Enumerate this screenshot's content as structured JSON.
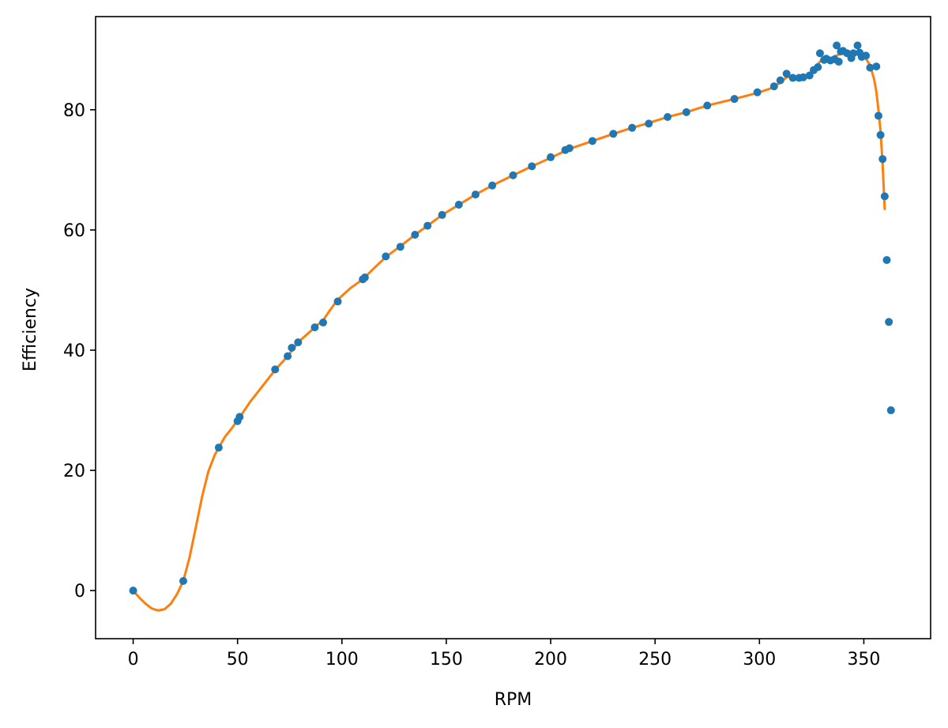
{
  "chart_data": {
    "type": "scatter",
    "title": "",
    "xlabel": "RPM",
    "ylabel": "Efficiency",
    "xlim": [
      -18,
      382
    ],
    "ylim": [
      -8,
      95.5
    ],
    "xticks": [
      0,
      50,
      100,
      150,
      200,
      250,
      300,
      350
    ],
    "yticks": [
      0,
      20,
      40,
      60,
      80
    ],
    "grid": false,
    "legend": "none",
    "series": [
      {
        "kind": "scatter",
        "color": "#1f77b4",
        "points": [
          [
            0,
            0
          ],
          [
            24,
            1.6
          ],
          [
            41,
            23.8
          ],
          [
            50,
            28.2
          ],
          [
            51,
            28.9
          ],
          [
            68,
            36.8
          ],
          [
            74,
            39
          ],
          [
            76,
            40.4
          ],
          [
            79,
            41.3
          ],
          [
            87,
            43.8
          ],
          [
            91,
            44.6
          ],
          [
            98,
            48.1
          ],
          [
            110,
            51.8
          ],
          [
            111,
            52.1
          ],
          [
            121,
            55.6
          ],
          [
            128,
            57.2
          ],
          [
            135,
            59.2
          ],
          [
            141,
            60.7
          ],
          [
            148,
            62.5
          ],
          [
            156,
            64.2
          ],
          [
            164,
            65.9
          ],
          [
            172,
            67.4
          ],
          [
            182,
            69.1
          ],
          [
            191,
            70.6
          ],
          [
            200,
            72.1
          ],
          [
            207,
            73.3
          ],
          [
            209,
            73.6
          ],
          [
            220,
            74.8
          ],
          [
            230,
            76.0
          ],
          [
            239,
            77.0
          ],
          [
            247,
            77.7
          ],
          [
            256,
            78.8
          ],
          [
            265,
            79.6
          ],
          [
            275,
            80.7
          ],
          [
            288,
            81.8
          ],
          [
            299,
            82.9
          ],
          [
            307,
            83.9
          ],
          [
            310,
            84.9
          ],
          [
            313,
            86.0
          ],
          [
            316,
            85.3
          ],
          [
            319,
            85.3
          ],
          [
            321,
            85.4
          ],
          [
            324,
            85.7
          ],
          [
            326,
            86.6
          ],
          [
            328,
            87.1
          ],
          [
            329,
            89.4
          ],
          [
            331,
            88.3
          ],
          [
            332,
            88.5
          ],
          [
            334,
            88.2
          ],
          [
            336,
            88.4
          ],
          [
            337,
            90.7
          ],
          [
            338,
            88.0
          ],
          [
            339,
            89.7
          ],
          [
            340,
            89.8
          ],
          [
            342,
            89.4
          ],
          [
            344,
            88.6
          ],
          [
            345,
            89.4
          ],
          [
            347,
            90.7
          ],
          [
            348,
            89.5
          ],
          [
            349,
            88.8
          ],
          [
            351,
            89.0
          ],
          [
            353,
            87.0
          ],
          [
            356,
            87.2
          ],
          [
            357,
            79.0
          ],
          [
            358,
            75.8
          ],
          [
            359,
            71.8
          ],
          [
            360,
            65.6
          ],
          [
            361,
            55.0
          ],
          [
            362,
            44.7
          ],
          [
            363,
            30.0
          ]
        ]
      },
      {
        "kind": "line",
        "color": "#ff7f0e",
        "points": [
          [
            0,
            0
          ],
          [
            3,
            -1.2
          ],
          [
            6,
            -2.2
          ],
          [
            9,
            -3.0
          ],
          [
            12,
            -3.3
          ],
          [
            15,
            -3.1
          ],
          [
            18,
            -2.2
          ],
          [
            21,
            -0.6
          ],
          [
            24,
            1.6
          ],
          [
            27,
            5.5
          ],
          [
            30,
            10.5
          ],
          [
            33,
            15.6
          ],
          [
            36,
            19.8
          ],
          [
            39,
            22.5
          ],
          [
            41,
            23.8
          ],
          [
            44,
            25.6
          ],
          [
            47,
            26.9
          ],
          [
            51,
            28.8
          ],
          [
            56,
            31.4
          ],
          [
            61,
            33.6
          ],
          [
            68,
            36.7
          ],
          [
            74,
            39.0
          ],
          [
            79,
            41.3
          ],
          [
            87,
            43.8
          ],
          [
            91,
            45.0
          ],
          [
            95,
            47.0
          ],
          [
            98,
            48.4
          ],
          [
            104,
            50.3
          ],
          [
            110,
            51.8
          ],
          [
            115,
            53.5
          ],
          [
            121,
            55.5
          ],
          [
            128,
            57.3
          ],
          [
            135,
            59.2
          ],
          [
            141,
            60.7
          ],
          [
            148,
            62.5
          ],
          [
            156,
            64.2
          ],
          [
            164,
            65.9
          ],
          [
            172,
            67.4
          ],
          [
            182,
            69.1
          ],
          [
            191,
            70.6
          ],
          [
            200,
            72.0
          ],
          [
            209,
            73.5
          ],
          [
            220,
            74.8
          ],
          [
            230,
            76.0
          ],
          [
            239,
            77.0
          ],
          [
            247,
            77.8
          ],
          [
            256,
            78.8
          ],
          [
            265,
            79.6
          ],
          [
            275,
            80.7
          ],
          [
            288,
            81.8
          ],
          [
            299,
            82.8
          ],
          [
            305,
            83.5
          ],
          [
            310,
            84.5
          ],
          [
            313,
            85.4
          ],
          [
            316,
            85.6
          ],
          [
            319,
            85.3
          ],
          [
            322,
            85.3
          ],
          [
            324,
            85.7
          ],
          [
            326,
            86.6
          ],
          [
            328,
            87.6
          ],
          [
            330,
            88.4
          ],
          [
            333,
            88.3
          ],
          [
            336,
            88.9
          ],
          [
            339,
            89.3
          ],
          [
            342,
            89.5
          ],
          [
            345,
            89.7
          ],
          [
            348,
            89.4
          ],
          [
            351,
            88.5
          ],
          [
            353,
            87.4
          ],
          [
            355,
            85.0
          ],
          [
            356,
            83.0
          ],
          [
            357,
            80.0
          ],
          [
            358,
            76.5
          ],
          [
            359,
            71.0
          ],
          [
            360,
            63.5
          ]
        ]
      }
    ]
  }
}
